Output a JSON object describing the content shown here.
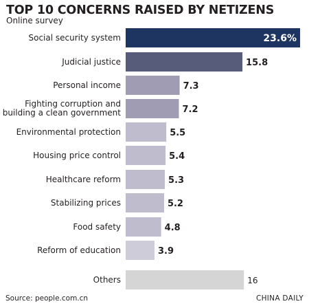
{
  "title": "TOP 10 CONCERNS RAISED BY NETIZENS",
  "subtitle": "Online survey",
  "source": "Source: people.com.cn",
  "credit": "CHINA DAILY",
  "colors": {
    "top": "#1e3461",
    "second": "#565c7a",
    "mid": "#a09cb4",
    "light": "#bebccd",
    "pale": "#cfccd9",
    "others": "#d5d5d5"
  },
  "chart_data": {
    "type": "bar",
    "orientation": "horizontal",
    "categories": [
      [
        "Social security system"
      ],
      [
        "Judicial justice"
      ],
      [
        "Personal income"
      ],
      [
        "Fighting corruption and",
        "building a clean government"
      ],
      [
        "Environmental protection"
      ],
      [
        "Housing price control"
      ],
      [
        "Healthcare reform"
      ],
      [
        "Stabilizing prices"
      ],
      [
        "Food safety"
      ],
      [
        "Reform of education"
      ],
      [
        "Others"
      ]
    ],
    "values": [
      23.6,
      15.8,
      7.3,
      7.2,
      5.5,
      5.4,
      5.3,
      5.2,
      4.8,
      3.9,
      16
    ],
    "labels": [
      "23.6%",
      "15.8",
      "7.3",
      "7.2",
      "5.5",
      "5.4",
      "5.3",
      "5.2",
      "4.8",
      "3.9",
      "16"
    ],
    "bar_colors": [
      "top",
      "second",
      "mid",
      "mid",
      "light",
      "light",
      "light",
      "light",
      "light",
      "pale",
      "others"
    ],
    "xlim": [
      0,
      23.6
    ],
    "grid": false,
    "legend": "none"
  }
}
